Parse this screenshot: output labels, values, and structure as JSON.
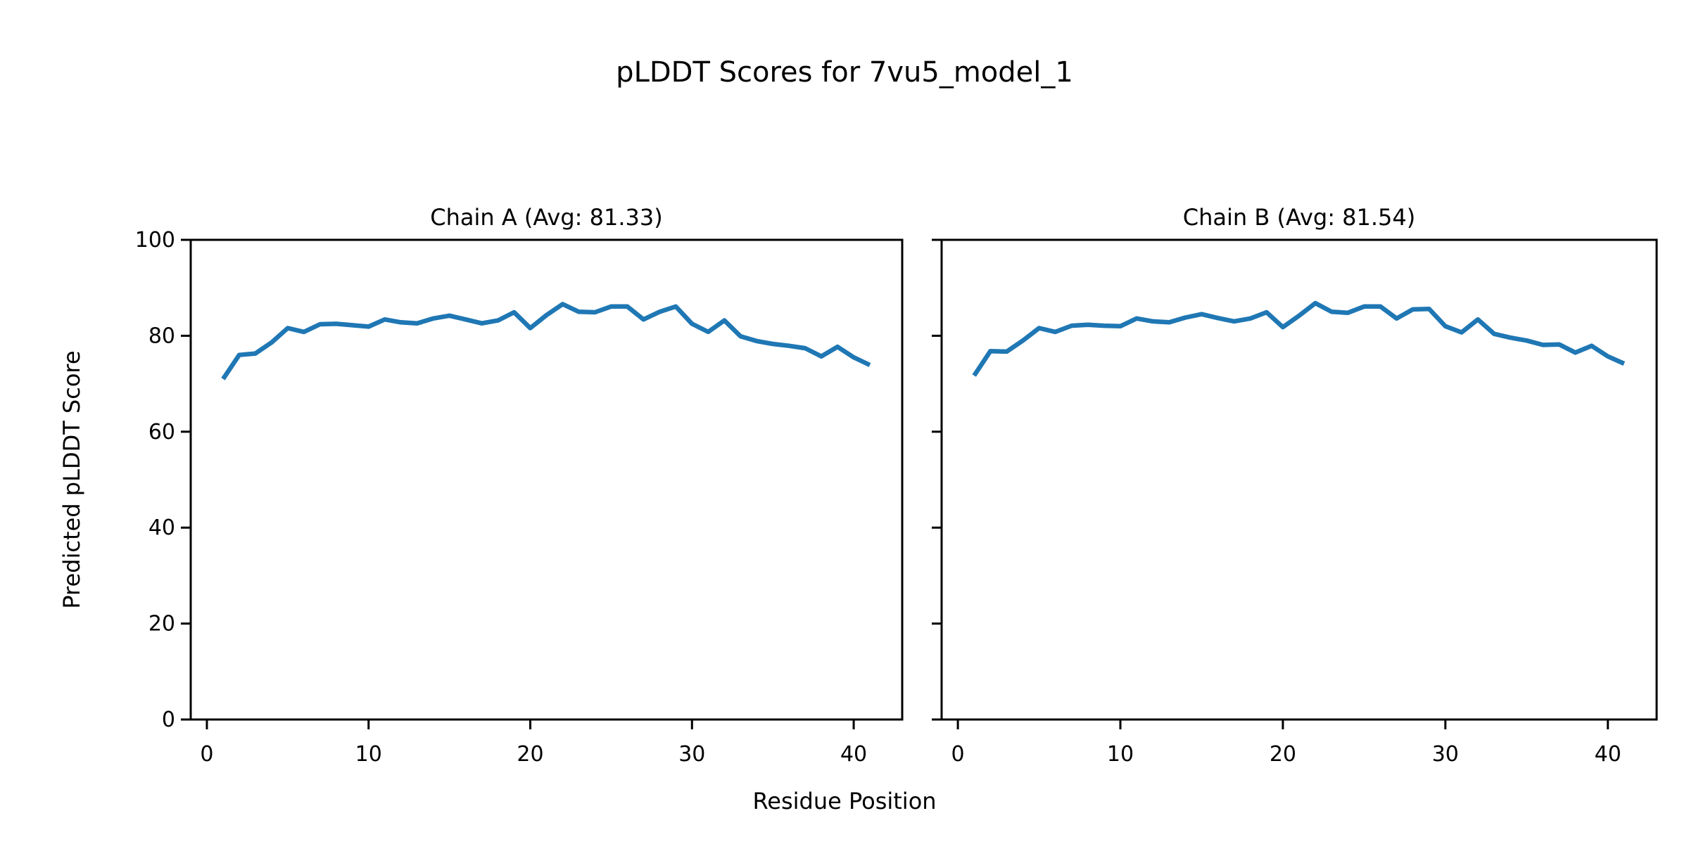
{
  "figure": {
    "title": "pLDDT Scores for 7vu5_model_1",
    "supxlabel": "Residue Position",
    "ylabel": "Predicted pLDDT Score",
    "background_color": "#ffffff",
    "text_color": "#000000",
    "line_color": "#1f77b4"
  },
  "chart_data": [
    {
      "type": "line",
      "title": "Chain A (Avg: 81.33)",
      "chain": "A",
      "avg_label": "81.33",
      "xlabel": "Residue Position",
      "ylabel": "Predicted pLDDT Score",
      "xlim": [
        -1,
        43
      ],
      "ylim": [
        0,
        100
      ],
      "xticks": [
        0,
        10,
        20,
        30,
        40
      ],
      "yticks": [
        0,
        20,
        40,
        60,
        80,
        100
      ],
      "show_ytick_labels": true,
      "grid": false,
      "legend": "none",
      "line_color": "#1f77b4",
      "x": [
        1,
        2,
        3,
        4,
        5,
        6,
        7,
        8,
        9,
        10,
        11,
        12,
        13,
        14,
        15,
        16,
        17,
        18,
        19,
        20,
        21,
        22,
        23,
        24,
        25,
        26,
        27,
        28,
        29,
        30,
        31,
        32,
        33,
        34,
        35,
        36,
        37,
        38,
        39,
        40,
        41
      ],
      "y": [
        71.0,
        76.0,
        76.3,
        78.6,
        81.6,
        80.8,
        82.4,
        82.5,
        82.2,
        81.9,
        83.4,
        82.8,
        82.6,
        83.6,
        84.2,
        83.4,
        82.6,
        83.2,
        84.9,
        81.6,
        84.3,
        86.6,
        85.0,
        84.9,
        86.1,
        86.1,
        83.4,
        85.0,
        86.1,
        82.5,
        80.8,
        83.2,
        79.9,
        78.9,
        78.3,
        77.9,
        77.4,
        75.7,
        77.7,
        75.5,
        73.9
      ]
    },
    {
      "type": "line",
      "title": "Chain B (Avg: 81.54)",
      "chain": "B",
      "avg_label": "81.54",
      "xlabel": "Residue Position",
      "ylabel": "Predicted pLDDT Score",
      "xlim": [
        -1,
        43
      ],
      "ylim": [
        0,
        100
      ],
      "xticks": [
        0,
        10,
        20,
        30,
        40
      ],
      "yticks": [
        0,
        20,
        40,
        60,
        80,
        100
      ],
      "show_ytick_labels": false,
      "grid": false,
      "legend": "none",
      "line_color": "#1f77b4",
      "x": [
        1,
        2,
        3,
        4,
        5,
        6,
        7,
        8,
        9,
        10,
        11,
        12,
        13,
        14,
        15,
        16,
        17,
        18,
        19,
        20,
        21,
        22,
        23,
        24,
        25,
        26,
        27,
        28,
        29,
        30,
        31,
        32,
        33,
        34,
        35,
        36,
        37,
        38,
        39,
        40,
        41
      ],
      "y": [
        71.7,
        76.8,
        76.7,
        79.0,
        81.6,
        80.8,
        82.1,
        82.3,
        82.1,
        82.0,
        83.6,
        83.0,
        82.8,
        83.8,
        84.5,
        83.7,
        83.0,
        83.6,
        84.9,
        81.8,
        84.2,
        86.8,
        85.0,
        84.8,
        86.1,
        86.1,
        83.6,
        85.5,
        85.6,
        82.0,
        80.7,
        83.4,
        80.4,
        79.6,
        79.0,
        78.1,
        78.2,
        76.5,
        77.9,
        75.7,
        74.2
      ]
    }
  ]
}
